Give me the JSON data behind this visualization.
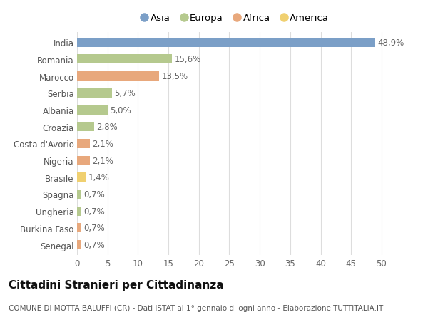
{
  "countries": [
    "India",
    "Romania",
    "Marocco",
    "Serbia",
    "Albania",
    "Croazia",
    "Costa d'Avorio",
    "Nigeria",
    "Brasile",
    "Spagna",
    "Ungheria",
    "Burkina Faso",
    "Senegal"
  ],
  "values": [
    48.9,
    15.6,
    13.5,
    5.7,
    5.0,
    2.8,
    2.1,
    2.1,
    1.4,
    0.7,
    0.7,
    0.7,
    0.7
  ],
  "labels": [
    "48,9%",
    "15,6%",
    "13,5%",
    "5,7%",
    "5,0%",
    "2,8%",
    "2,1%",
    "2,1%",
    "1,4%",
    "0,7%",
    "0,7%",
    "0,7%",
    "0,7%"
  ],
  "continents": [
    "Asia",
    "Europa",
    "Africa",
    "Europa",
    "Europa",
    "Europa",
    "Africa",
    "Africa",
    "America",
    "Europa",
    "Europa",
    "Africa",
    "Africa"
  ],
  "colors": {
    "Asia": "#7b9fc7",
    "Europa": "#b5c98e",
    "Africa": "#e8a87c",
    "America": "#f0d070"
  },
  "legend_order": [
    "Asia",
    "Europa",
    "Africa",
    "America"
  ],
  "legend_colors": [
    "#7b9fc7",
    "#b5c98e",
    "#e8a87c",
    "#f0d070"
  ],
  "xlim": [
    0,
    52
  ],
  "xticks": [
    0,
    5,
    10,
    15,
    20,
    25,
    30,
    35,
    40,
    45,
    50
  ],
  "title": "Cittadini Stranieri per Cittadinanza",
  "subtitle": "COMUNE DI MOTTA BALUFFI (CR) - Dati ISTAT al 1° gennaio di ogni anno - Elaborazione TUTTITALIA.IT",
  "bg_color": "#ffffff",
  "plot_bg_color": "#ffffff",
  "grid_color": "#dddddd",
  "bar_height": 0.55,
  "label_fontsize": 8.5,
  "title_fontsize": 11,
  "subtitle_fontsize": 7.5,
  "tick_fontsize": 8.5,
  "legend_fontsize": 9.5
}
